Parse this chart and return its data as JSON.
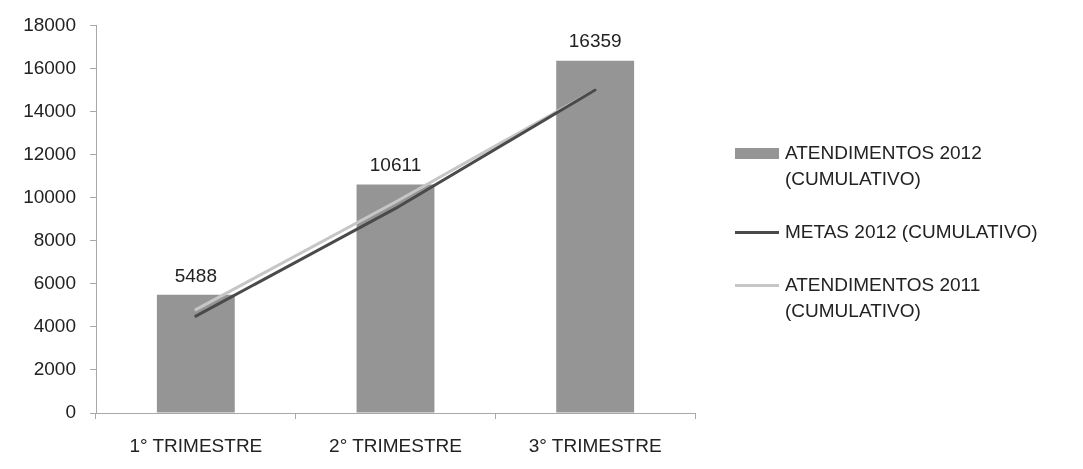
{
  "chart_data": {
    "type": "bar",
    "categories": [
      "1° TRIMESTRE",
      "2° TRIMESTRE",
      "3° TRIMESTRE"
    ],
    "series": [
      {
        "name": "ATENDIMENTOS 2012 (CUMULATIVO)",
        "color": "#959595",
        "values": [
          5488,
          10611,
          16359
        ],
        "value_labels": [
          "5488",
          "10611",
          "16359"
        ]
      },
      {
        "name": "METAS 2012 (CUMULATIVO)",
        "type": "line",
        "color": "#4a4a4a",
        "values": [
          4500,
          9500,
          15000
        ]
      },
      {
        "name": "ATENDIMENTOS 2011 (CUMULATIVO)",
        "type": "line",
        "color": "#c6c6c6",
        "values": [
          4800,
          9800,
          15000
        ]
      }
    ],
    "ylim": [
      0,
      18000
    ],
    "yticks": [
      0,
      2000,
      4000,
      6000,
      8000,
      10000,
      12000,
      14000,
      16000,
      18000
    ],
    "legend": "right",
    "marker": "none"
  }
}
